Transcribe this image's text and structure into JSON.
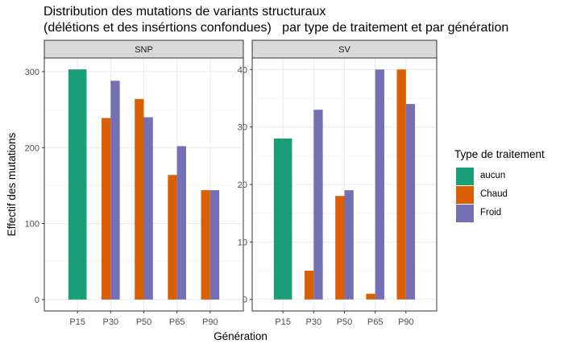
{
  "title_line1": "Distribution des mutations de variants structuraux",
  "title_line2": "(délétions et des insértions confondues)   par type de traitement et par génération",
  "chart_data": {
    "type": "bar",
    "xlabel": "Génération",
    "ylabel": "Effectif des mutations",
    "categories": [
      "P15",
      "P30",
      "P50",
      "P65",
      "P90"
    ],
    "legend_title": "Type de traitement",
    "legend_position": "right",
    "grid": true,
    "series_colors": {
      "aucun": "#1B9E77",
      "Chaud": "#D95F02",
      "Froid": "#7570B3"
    },
    "panels": [
      {
        "label": "SNP",
        "ylim": [
          -15,
          318
        ],
        "yticks": [
          0,
          100,
          200,
          300
        ],
        "series": [
          {
            "name": "aucun",
            "values": [
              303,
              null,
              null,
              null,
              null
            ]
          },
          {
            "name": "Chaud",
            "values": [
              null,
              239,
              264,
              164,
              144
            ]
          },
          {
            "name": "Froid",
            "values": [
              null,
              288,
              240,
              202,
              144
            ]
          }
        ]
      },
      {
        "label": "SV",
        "ylim": [
          -2,
          42
        ],
        "yticks": [
          0,
          10,
          20,
          30,
          40
        ],
        "series": [
          {
            "name": "aucun",
            "values": [
              28,
              null,
              null,
              null,
              null
            ]
          },
          {
            "name": "Chaud",
            "values": [
              null,
              5,
              18,
              1,
              40
            ]
          },
          {
            "name": "Froid",
            "values": [
              null,
              33,
              19,
              40,
              34
            ]
          }
        ]
      }
    ]
  }
}
